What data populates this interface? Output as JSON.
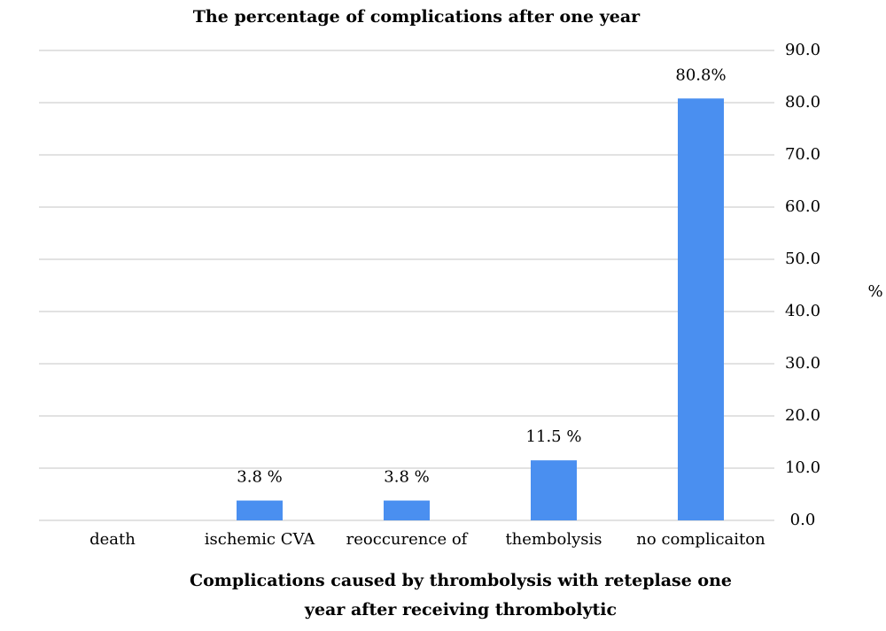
{
  "chart_data": {
    "type": "bar",
    "title": "The percentage of complications after one year",
    "x_label": "Complications caused by thrombolysis with reteplase one year after receiving thrombolytic",
    "y_label": "%",
    "categories": [
      "death",
      "ischemic CVA",
      "reoccurence of",
      "thembolysis",
      "no complicaiton"
    ],
    "values": [
      0,
      3.8,
      3.8,
      11.5,
      80.8
    ],
    "value_labels": [
      null,
      "3.8 %",
      "3.8 %",
      "11.5 %",
      "80.8%"
    ],
    "color": "#4a8ff0",
    "ylim": [
      0,
      90
    ],
    "yticks": [
      {
        "value": 0,
        "label": "0.0"
      },
      {
        "value": 10,
        "label": "10.0"
      },
      {
        "value": 20,
        "label": "20.0"
      },
      {
        "value": 30,
        "label": "30.0"
      },
      {
        "value": 40,
        "label": "40.0"
      },
      {
        "value": 50,
        "label": "50.0"
      },
      {
        "value": 60,
        "label": "60.0"
      },
      {
        "value": 70,
        "label": "70.0"
      },
      {
        "value": 80,
        "label": "80.0"
      },
      {
        "value": 90,
        "label": "90.0"
      }
    ],
    "grid": true,
    "y_axis_side": "right"
  }
}
